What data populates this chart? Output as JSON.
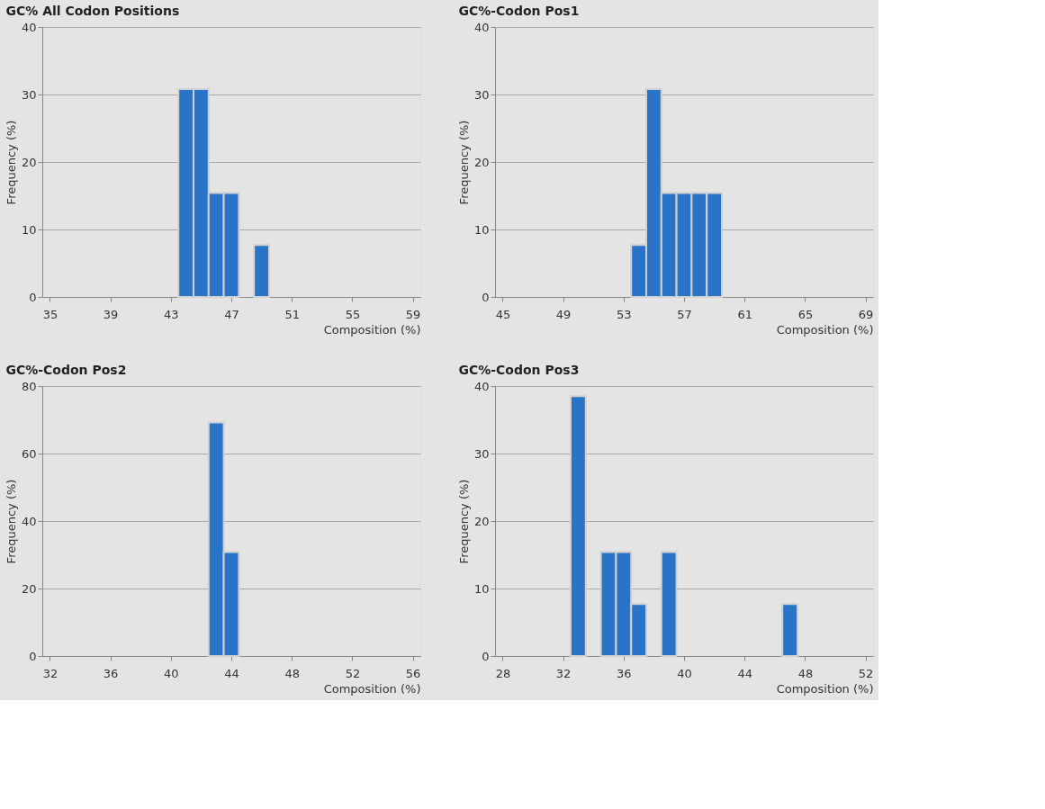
{
  "chart_data": [
    {
      "type": "histogram",
      "title": "GC% All Codon Positions",
      "xlabel": "Composition (%)",
      "ylabel": "Frequency (%)",
      "color": "#2a74c8",
      "bins": [
        43.5,
        44.5,
        45.5,
        46.5,
        47.5,
        48.5,
        49.5
      ],
      "values": [
        30.8,
        30.8,
        15.4,
        15.4,
        0,
        7.7
      ],
      "xlim": [
        34.5,
        59.5
      ],
      "xticks": [
        35,
        39,
        43,
        47,
        51,
        55,
        59
      ],
      "ylim": [
        0,
        40
      ],
      "yticks": [
        0,
        10,
        20,
        30,
        40
      ],
      "grid": "y"
    },
    {
      "type": "histogram",
      "title": "GC%-Codon Pos1",
      "xlabel": "Composition (%)",
      "ylabel": "Frequency (%)",
      "color": "#2a74c8",
      "bins": [
        53.5,
        54.5,
        55.5,
        56.5,
        57.5,
        58.5,
        59.5
      ],
      "values": [
        7.7,
        30.8,
        15.4,
        15.4,
        15.4,
        15.4
      ],
      "xlim": [
        44.5,
        69.5
      ],
      "xticks": [
        45,
        49,
        53,
        57,
        61,
        65,
        69
      ],
      "ylim": [
        0,
        40
      ],
      "yticks": [
        0,
        10,
        20,
        30,
        40
      ],
      "grid": "y"
    },
    {
      "type": "histogram",
      "title": "GC%-Codon Pos2",
      "xlabel": "Composition (%)",
      "ylabel": "Frequency (%)",
      "color": "#2a74c8",
      "bins": [
        42.5,
        43.5,
        44.5
      ],
      "values": [
        69.2,
        30.8
      ],
      "xlim": [
        31.5,
        56.5
      ],
      "xticks": [
        32,
        36,
        40,
        44,
        48,
        52,
        56
      ],
      "ylim": [
        0,
        80
      ],
      "yticks": [
        0,
        20,
        40,
        60,
        80
      ],
      "grid": "y"
    },
    {
      "type": "histogram",
      "title": "GC%-Codon Pos3",
      "xlabel": "Composition (%)",
      "ylabel": "Frequency (%)",
      "color": "#2a74c8",
      "bins": [
        32.5,
        33.5,
        34.5,
        35.5,
        36.5,
        37.5,
        38.5,
        39.5,
        40.5,
        41.5,
        42.5,
        43.5,
        44.5,
        45.5,
        46.5,
        47.5
      ],
      "values": [
        38.5,
        0,
        15.4,
        15.4,
        7.7,
        0,
        15.4,
        0,
        0,
        0,
        0,
        0,
        0,
        0,
        7.7
      ],
      "xlim": [
        27.5,
        52.5
      ],
      "xticks": [
        28,
        32,
        36,
        40,
        44,
        48,
        52
      ],
      "ylim": [
        0,
        40
      ],
      "yticks": [
        0,
        10,
        20,
        30,
        40
      ],
      "grid": "y"
    }
  ]
}
